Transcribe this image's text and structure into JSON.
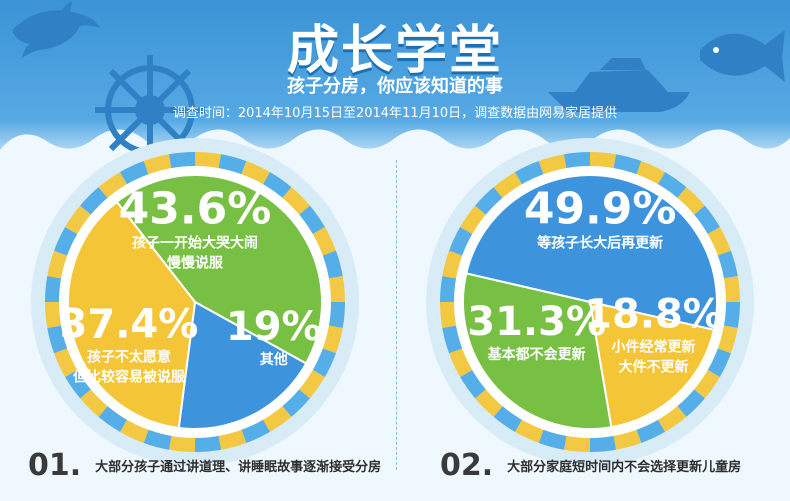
{
  "header": {
    "title": "成长学堂",
    "subtitle": "孩子分房，你应该知道的事",
    "survey_note": "调查时间：2014年10月15日至2014年11月10日，调查数据由网易家居提供"
  },
  "colors": {
    "green": "#78c043",
    "yellow": "#f4c537",
    "blue": "#3d93dc",
    "ring_blue": "#55aee8",
    "ring_yellow": "#f3c843"
  },
  "chart_data": [
    {
      "type": "pie",
      "number": "01.",
      "caption": "大部分孩子通过讲道理、讲睡眠故事逐渐接受分房",
      "slices": [
        {
          "value": 43.6,
          "value_label": "43.6%",
          "label_lines": [
            "孩子一开始大哭大闹",
            "慢慢说服"
          ],
          "color": "#78c043"
        },
        {
          "value": 19,
          "value_label": "19%",
          "label_lines": [
            "其他"
          ],
          "color": "#3d93dc"
        },
        {
          "value": 37.4,
          "value_label": "37.4%",
          "label_lines": [
            "孩子不太愿意",
            "但比较容易被说服"
          ],
          "color": "#f4c537"
        }
      ]
    },
    {
      "type": "pie",
      "number": "02.",
      "caption": "大部分家庭短时间内不会选择更新儿童房",
      "slices": [
        {
          "value": 49.9,
          "value_label": "49.9%",
          "label_lines": [
            "等孩子长大后再更新"
          ],
          "color": "#3d93dc"
        },
        {
          "value": 18.8,
          "value_label": "18.8%",
          "label_lines": [
            "小件经常更新",
            "大件不更新"
          ],
          "color": "#f4c537"
        },
        {
          "value": 31.3,
          "value_label": "31.3%",
          "label_lines": [
            "基本都不会更新"
          ],
          "color": "#78c043"
        }
      ]
    }
  ]
}
